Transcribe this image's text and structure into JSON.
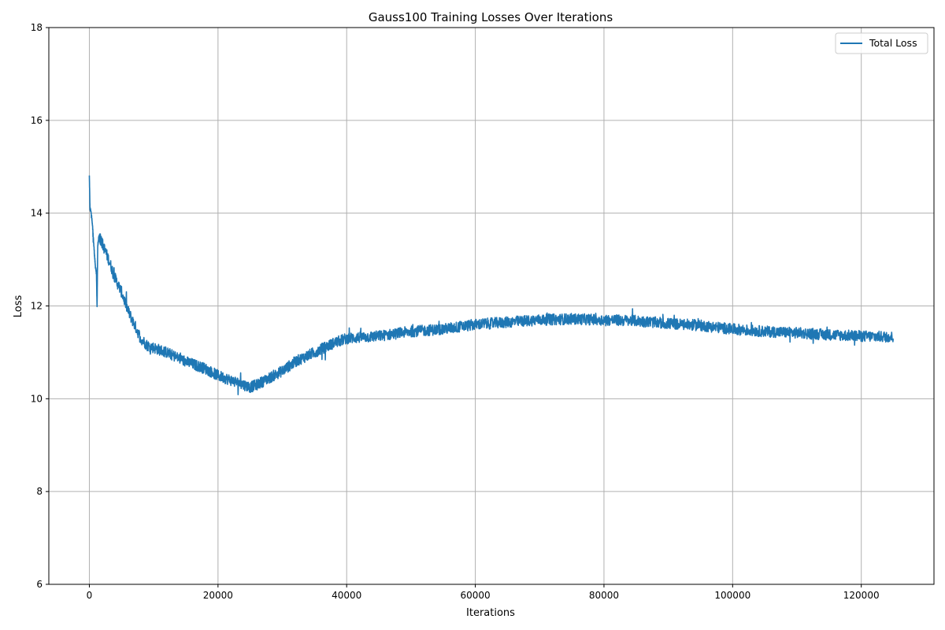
{
  "chart_data": {
    "type": "line",
    "title": "Gauss100 Training Losses Over Iterations",
    "xlabel": "Iterations",
    "ylabel": "Loss",
    "xlim": [
      -6300,
      131300
    ],
    "ylim": [
      6,
      18
    ],
    "xticks": [
      0,
      20000,
      40000,
      60000,
      80000,
      100000,
      120000
    ],
    "xtick_labels": [
      "0",
      "20000",
      "40000",
      "60000",
      "80000",
      "100000",
      "120000"
    ],
    "yticks": [
      6,
      8,
      10,
      12,
      14,
      16,
      18
    ],
    "ytick_labels": [
      "6",
      "8",
      "10",
      "12",
      "14",
      "16",
      "18"
    ],
    "grid": true,
    "legend_position": "top-right",
    "series": [
      {
        "name": "Total Loss",
        "color": "#1f77b4",
        "noise_amplitude": 0.12,
        "x": [
          0,
          100,
          300,
          500,
          700,
          900,
          1100,
          1200,
          1300,
          1500,
          2000,
          3000,
          4000,
          5000,
          6000,
          7000,
          8000,
          9000,
          10000,
          12000,
          15000,
          18000,
          20000,
          22000,
          24000,
          25000,
          26000,
          28000,
          30000,
          32000,
          35000,
          38000,
          40000,
          45000,
          50000,
          55000,
          60000,
          65000,
          70000,
          75000,
          80000,
          85000,
          90000,
          95000,
          100000,
          105000,
          110000,
          115000,
          120000,
          125000
        ],
        "y": [
          14.8,
          14.1,
          14.0,
          13.7,
          13.3,
          12.9,
          12.7,
          11.95,
          13.3,
          13.5,
          13.35,
          13.0,
          12.6,
          12.3,
          11.9,
          11.6,
          11.3,
          11.15,
          11.1,
          11.0,
          10.8,
          10.65,
          10.5,
          10.4,
          10.3,
          10.25,
          10.3,
          10.45,
          10.6,
          10.8,
          11.0,
          11.2,
          11.3,
          11.35,
          11.45,
          11.5,
          11.6,
          11.65,
          11.7,
          11.72,
          11.7,
          11.68,
          11.62,
          11.58,
          11.5,
          11.45,
          11.42,
          11.38,
          11.35,
          11.33
        ]
      }
    ]
  }
}
